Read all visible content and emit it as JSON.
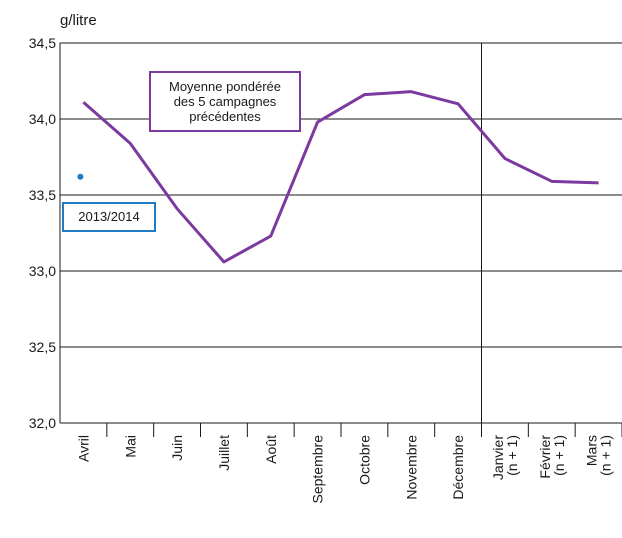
{
  "chart_data": {
    "type": "line",
    "unit_label": "g/litre",
    "categories": [
      {
        "lines": [
          "Avril"
        ]
      },
      {
        "lines": [
          "Mai"
        ]
      },
      {
        "lines": [
          "Juin"
        ]
      },
      {
        "lines": [
          "Juillet"
        ]
      },
      {
        "lines": [
          "Août"
        ]
      },
      {
        "lines": [
          "Septembre"
        ]
      },
      {
        "lines": [
          "Octobre"
        ]
      },
      {
        "lines": [
          "Novembre"
        ]
      },
      {
        "lines": [
          "Décembre"
        ]
      },
      {
        "lines": [
          "Janvier",
          "(n + 1)"
        ]
      },
      {
        "lines": [
          "Février",
          "(n + 1)"
        ]
      },
      {
        "lines": [
          "Mars",
          "(n + 1)"
        ]
      }
    ],
    "y_ticks": [
      "32,0",
      "32,5",
      "33,0",
      "33,5",
      "34,0",
      "34,5"
    ],
    "ylim": [
      32.0,
      34.5
    ],
    "grid": "horizontal",
    "series": [
      {
        "legend_lines": [
          "Moyenne pondérée",
          "des 5 campagnes",
          "précédentes"
        ],
        "color": "#7b3aa0",
        "values": [
          34.11,
          33.84,
          33.41,
          33.06,
          33.23,
          33.98,
          34.16,
          34.18,
          34.1,
          33.74,
          33.59,
          33.58
        ]
      },
      {
        "legend_lines": [
          "2013/2014"
        ],
        "color": "#1e7bc4",
        "values": [
          33.62,
          null,
          null,
          null,
          null,
          null,
          null,
          null,
          null,
          null,
          null,
          null
        ]
      }
    ],
    "year_boundary_after": "Décembre"
  }
}
